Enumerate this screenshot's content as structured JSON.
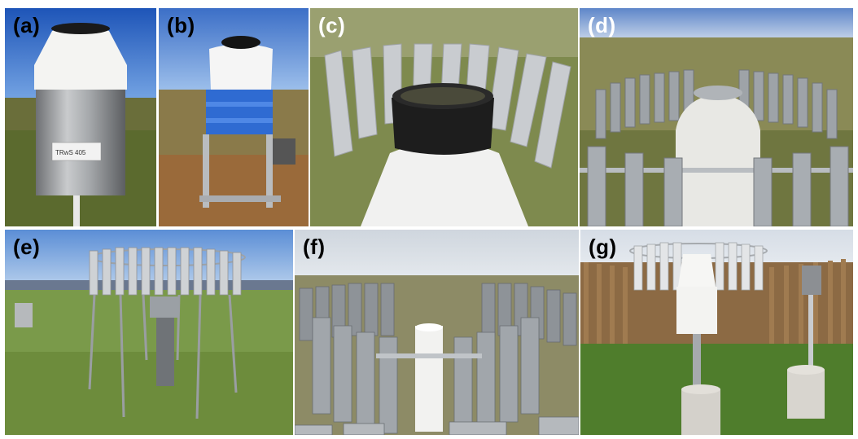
{
  "panels": [
    {
      "id": "a",
      "label": "(a)",
      "label_color": "#000000",
      "gauge_text": "TRwS 405"
    },
    {
      "id": "b",
      "label": "(b)",
      "label_color": "#000000"
    },
    {
      "id": "c",
      "label": "(c)",
      "label_color": "#ffffff"
    },
    {
      "id": "d",
      "label": "(d)",
      "label_color": "#ffffff"
    },
    {
      "id": "e",
      "label": "(e)",
      "label_color": "#000000"
    },
    {
      "id": "f",
      "label": "(f)",
      "label_color": "#000000"
    },
    {
      "id": "g",
      "label": "(g)",
      "label_color": "#000000"
    }
  ]
}
